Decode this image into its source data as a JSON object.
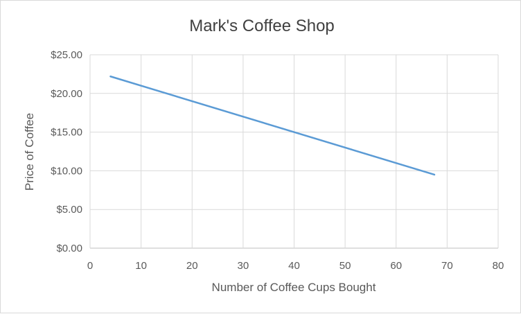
{
  "chart_data": {
    "type": "line",
    "title": "Mark's Coffee Shop",
    "xlabel": "Number of Coffee  Cups Bought",
    "ylabel": "Price of Coffee",
    "xlim": [
      0,
      80
    ],
    "ylim": [
      0,
      25
    ],
    "x_ticks": [
      0,
      10,
      20,
      30,
      40,
      50,
      60,
      70,
      80
    ],
    "y_ticks": [
      0,
      5,
      10,
      15,
      20,
      25
    ],
    "y_tick_labels": [
      "$0.00",
      "$5.00",
      "$10.00",
      "$15.00",
      "$20.00",
      "$25.00"
    ],
    "grid": true,
    "legend": "none",
    "series": [
      {
        "color": "#5b9bd5",
        "x": [
          4,
          67.5
        ],
        "y": [
          22.2,
          9.5
        ]
      }
    ]
  }
}
